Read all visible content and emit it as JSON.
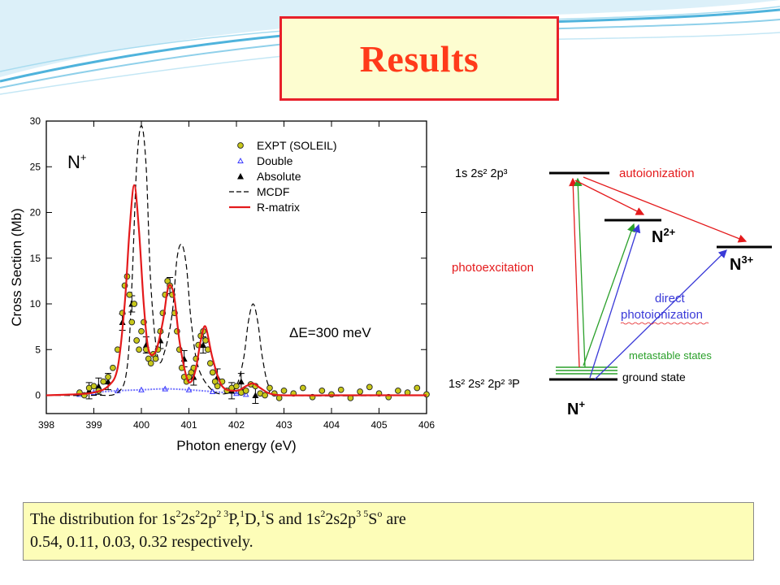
{
  "slide": {
    "title": "Results",
    "accent_colors": {
      "title_text": "#ff3a1a",
      "title_border": "#e8202a",
      "title_fill": "#fdfdd0",
      "note_fill": "#fdfdb8",
      "waves": "#4fb3dc"
    }
  },
  "chart_data": {
    "type": "line",
    "inset_label": "N",
    "inset_label_sup": "+",
    "annotation": "ΔE=300 meV",
    "xlabel": "Photon energy (eV)",
    "ylabel": "Cross Section (Mb)",
    "xlim": [
      398,
      406
    ],
    "ylim": [
      -2,
      30
    ],
    "xticks": [
      398,
      399,
      400,
      401,
      402,
      403,
      404,
      405,
      406
    ],
    "yticks": [
      0,
      5,
      10,
      15,
      20,
      25,
      30
    ],
    "legend_position": "top-right",
    "legend": [
      {
        "label": "EXPT (SOLEIL)",
        "marker": "circle",
        "color": "#c8c81a"
      },
      {
        "label": "Double",
        "marker": "open-triangle",
        "color": "#3a3aff"
      },
      {
        "label": "Absolute",
        "marker": "filled-triangle",
        "color": "#000000"
      },
      {
        "label": "MCDF",
        "marker": "dashed-line",
        "color": "#000000"
      },
      {
        "label": "R-matrix",
        "marker": "solid-line",
        "color": "#e41a1c"
      }
    ],
    "series": [
      {
        "name": "R-matrix",
        "color": "#e41a1c",
        "x": [
          398.0,
          398.6,
          399.0,
          399.3,
          399.5,
          399.65,
          399.75,
          399.85,
          399.95,
          400.05,
          400.15,
          400.3,
          400.45,
          400.55,
          400.62,
          400.7,
          400.8,
          400.95,
          401.05,
          401.15,
          401.25,
          401.35,
          401.5,
          401.7,
          402.0,
          402.2,
          402.35,
          402.5,
          402.7,
          403.0,
          404.0,
          405.0,
          406.0
        ],
        "y": [
          0,
          0.1,
          0.3,
          1.0,
          3.0,
          10.0,
          18.0,
          23.0,
          18.0,
          10.0,
          5.0,
          4.8,
          8.0,
          11.5,
          12.0,
          10.5,
          6.0,
          2.0,
          1.5,
          3.0,
          6.0,
          7.5,
          4.0,
          1.0,
          0.5,
          1.0,
          1.3,
          0.8,
          0.2,
          0,
          0,
          0,
          0
        ]
      },
      {
        "name": "MCDF",
        "color": "#000000",
        "x": [
          398.0,
          399.0,
          399.5,
          399.7,
          399.8,
          399.9,
          400.0,
          400.1,
          400.2,
          400.35,
          400.5,
          400.65,
          400.75,
          400.85,
          400.95,
          401.05,
          401.2,
          401.5,
          401.8,
          402.0,
          402.15,
          402.25,
          402.35,
          402.45,
          402.55,
          402.7,
          403.0,
          406.0
        ],
        "y": [
          0,
          0,
          0.3,
          3.0,
          12.0,
          25.0,
          29.5,
          25.0,
          12.0,
          4.0,
          5.0,
          9.0,
          15.0,
          16.5,
          14.0,
          8.0,
          3.0,
          0.5,
          0.2,
          1.0,
          4.0,
          8.0,
          10.0,
          8.0,
          4.0,
          0.8,
          0,
          0
        ]
      },
      {
        "name": "Double",
        "color": "#3a3aff",
        "x": [
          398.7,
          399.0,
          399.5,
          400.0,
          400.5,
          401.0,
          401.5,
          402.0,
          402.2
        ],
        "y": [
          0.1,
          0.3,
          0.5,
          0.6,
          0.7,
          0.6,
          0.4,
          0.2,
          0.1
        ]
      },
      {
        "name": "EXPT (SOLEIL)",
        "color": "#c8c81a",
        "x": [
          398.7,
          398.8,
          398.9,
          399.0,
          399.1,
          399.2,
          399.3,
          399.4,
          399.5,
          399.6,
          399.65,
          399.7,
          399.75,
          399.8,
          399.85,
          399.9,
          399.95,
          400.0,
          400.05,
          400.1,
          400.15,
          400.2,
          400.25,
          400.3,
          400.35,
          400.4,
          400.45,
          400.5,
          400.55,
          400.6,
          400.65,
          400.7,
          400.75,
          400.8,
          400.85,
          400.9,
          400.95,
          401.0,
          401.05,
          401.1,
          401.15,
          401.2,
          401.25,
          401.3,
          401.35,
          401.4,
          401.45,
          401.5,
          401.55,
          401.6,
          401.7,
          401.8,
          401.9,
          402.0,
          402.1,
          402.2,
          402.3,
          402.4,
          402.5,
          402.6,
          402.7,
          402.8,
          402.9,
          403.0,
          403.2,
          403.4,
          403.6,
          403.8,
          404.0,
          404.2,
          404.4,
          404.6,
          404.8,
          405.0,
          405.2,
          405.4,
          405.6,
          405.8,
          406.0
        ],
        "y": [
          0.3,
          0.0,
          0.8,
          1.0,
          0.5,
          1.5,
          2.0,
          3.0,
          5.0,
          9.0,
          12.0,
          13.0,
          11.0,
          8.0,
          10.0,
          6.0,
          5.0,
          7.0,
          8.0,
          5.0,
          4.0,
          3.5,
          4.5,
          4.0,
          5.0,
          7.0,
          9.0,
          11.0,
          12.5,
          12.0,
          11.0,
          9.0,
          7.0,
          5.0,
          3.0,
          2.0,
          1.5,
          2.0,
          2.5,
          3.0,
          4.0,
          5.5,
          6.5,
          7.0,
          6.0,
          5.0,
          3.5,
          2.5,
          1.5,
          1.0,
          1.5,
          0.5,
          0.8,
          1.0,
          0.3,
          0.5,
          1.2,
          1.0,
          0.2,
          0.0,
          0.8,
          0.2,
          -0.3,
          0.5,
          0.2,
          0.8,
          -0.2,
          0.5,
          0.1,
          0.6,
          -0.3,
          0.4,
          0.9,
          0.2,
          -0.2,
          0.5,
          0.3,
          0.8,
          0.1
        ]
      },
      {
        "name": "Absolute",
        "color": "#000000",
        "x": [
          398.9,
          399.1,
          399.3,
          399.6,
          399.8,
          400.1,
          400.4,
          400.6,
          400.9,
          401.1,
          401.3,
          401.6,
          401.9,
          402.1,
          402.4
        ],
        "y": [
          0.5,
          1.0,
          1.5,
          8.0,
          10.0,
          5.5,
          6.0,
          12.0,
          4.0,
          2.0,
          5.5,
          2.0,
          0.5,
          1.5,
          0.0
        ]
      }
    ]
  },
  "level_diagram": {
    "upper_config": "1s 2s² 2p³",
    "ground_config": "1s² 2s² 2p² ³P",
    "autoionization_label": "autoionization",
    "photoexcitation_label": "photoexcitation",
    "direct_label_1": "direct",
    "direct_label_2": "photoionization",
    "metastable_label": "metastable states",
    "ground_label": "ground state",
    "ion_n_plus": "N",
    "ion_n_plus_sup": "+",
    "ion_n2": "N",
    "ion_n2_sup": "2+",
    "ion_n3": "N",
    "ion_n3_sup": "3+"
  },
  "note": {
    "line1_a": "The distribution for  1s",
    "line1_b": "2",
    "line1_c": "2s",
    "line1_d": "2",
    "line1_e": "2p",
    "line1_f": "2 3",
    "line1_g": "P,",
    "line1_h": "1",
    "line1_i": "D,",
    "line1_j": "1",
    "line1_k": "S and 1s",
    "line1_l": "2",
    "line1_m": "2s2p",
    "line1_n": "3 5",
    "line1_o": "S",
    "line1_p": "o",
    "line1_q": " are",
    "line2": "0.54, 0.11, 0.03, 0.32 respectively."
  }
}
